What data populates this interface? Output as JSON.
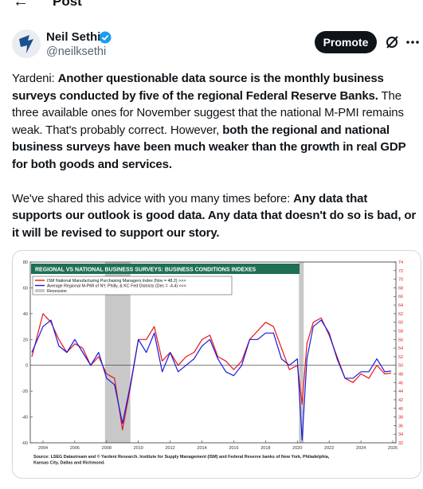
{
  "header": {
    "title": "Post"
  },
  "author": {
    "name": "Neil Sethi",
    "handle": "@neilksethi"
  },
  "actions": {
    "promote": "Promote"
  },
  "tweet": {
    "paragraphs": [
      [
        {
          "text": "Yardeni: ",
          "bold": false
        },
        {
          "text": "Another questionable data source is the monthly business surveys conducted by five of the regional Federal Reserve Banks.",
          "bold": true
        },
        {
          "text": " The three available ones for November suggest that the national M-PMI remains weak. That's probably correct. However, ",
          "bold": false
        },
        {
          "text": "both the regional and national business surveys have been much weaker than the growth in real GDP for both goods and services.",
          "bold": true
        }
      ],
      [
        {
          "text": "We've shared this advice with you many times before: ",
          "bold": false
        },
        {
          "text": "Any data that supports our outlook is good data. Any data that doesn't do so is bad, or it will be revised to support our story.",
          "bold": true
        }
      ]
    ]
  },
  "chart_data": {
    "type": "line",
    "title": "REGIONAL VS NATIONAL BUSINESS SURVEYS: BUSINESS CONDITIONS INDEXES",
    "x": [
      2003.3,
      2004,
      2004.5,
      2005,
      2005.5,
      2006,
      2006.5,
      2007,
      2007.5,
      2008,
      2008.5,
      2009,
      2009.5,
      2010,
      2010.5,
      2011,
      2011.5,
      2012,
      2012.5,
      2013,
      2013.5,
      2014,
      2014.5,
      2015,
      2015.5,
      2016,
      2016.5,
      2017,
      2017.5,
      2018,
      2018.5,
      2019,
      2019.5,
      2020,
      2020.3,
      2020.6,
      2021,
      2021.5,
      2022,
      2022.5,
      2023,
      2023.5,
      2024,
      2024.5,
      2025,
      2025.5,
      2025.9
    ],
    "series": [
      {
        "name": "ISM National Manufacturing Purchasing Managers Index (Nov = 48.2) >>>",
        "color": "#e8141c",
        "axis": "y2",
        "values": [
          52,
          62,
          60,
          56,
          53,
          55,
          54,
          50,
          52,
          48,
          47,
          35,
          45,
          56,
          56,
          59,
          51,
          53,
          50,
          52,
          53,
          56,
          57,
          52,
          51,
          49,
          51,
          56,
          58,
          60,
          59,
          54,
          49,
          50,
          41,
          55,
          60,
          61,
          57,
          52,
          47,
          46,
          48,
          47,
          50,
          48,
          48.2
        ]
      },
      {
        "name": "Average Regional M-PMI of NY, Philly, & KC Fed Districts (Dec = -4.4) <<<",
        "color": "#1a1adc",
        "values": [
          10,
          30,
          35,
          15,
          10,
          20,
          10,
          0,
          10,
          -10,
          -15,
          -45,
          -15,
          20,
          10,
          25,
          -5,
          10,
          -5,
          0,
          5,
          15,
          20,
          5,
          -5,
          -8,
          0,
          20,
          20,
          25,
          25,
          5,
          0,
          5,
          -58,
          5,
          30,
          35,
          25,
          5,
          -10,
          -10,
          -5,
          -5,
          5,
          -5,
          -4.4
        ]
      }
    ],
    "recession": {
      "name": "Recession",
      "color": "#c8c8c8",
      "spans": [
        [
          2007.9,
          2009.5
        ],
        [
          2020.1,
          2020.4
        ]
      ]
    },
    "xlim": [
      2003.2,
      2026.2
    ],
    "xticks": [
      2004,
      2006,
      2008,
      2010,
      2012,
      2014,
      2016,
      2018,
      2020,
      2022,
      2024,
      2026
    ],
    "ylim": [
      -60,
      80
    ],
    "yticks": [
      -60,
      -40,
      -20,
      0,
      20,
      40,
      60,
      80
    ],
    "y2lim": [
      32,
      74
    ],
    "y2ticks": [
      32,
      34,
      36,
      38,
      40,
      42,
      44,
      46,
      48,
      50,
      52,
      54,
      56,
      58,
      60,
      62,
      64,
      66,
      68,
      70,
      72,
      74
    ],
    "source": [
      "Source: LSEG Datastream and © Yardeni Research. Institute for Supply Management (ISM) and Federal Reserve banks of New York, Philadelphia,",
      "Kansas City, Dallas and Richmond."
    ]
  }
}
